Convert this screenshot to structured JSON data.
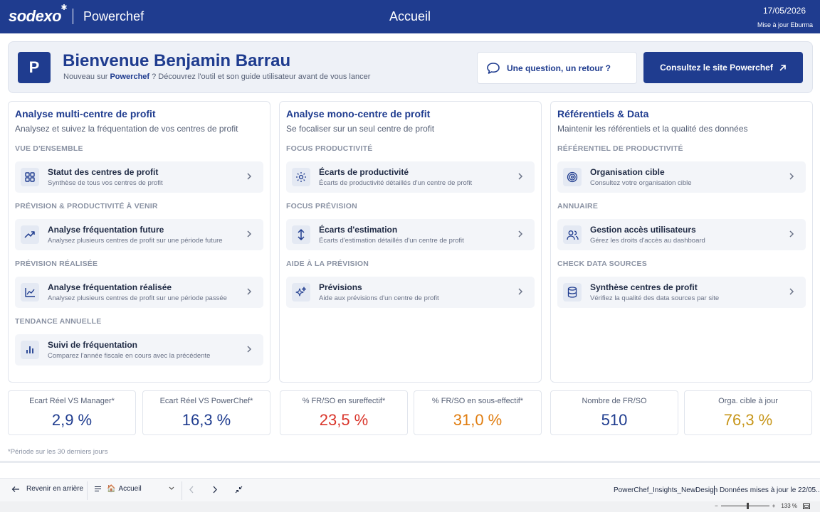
{
  "header": {
    "brand": "sodexo",
    "app_name": "Powerchef",
    "page_title": "Accueil",
    "date": "17/05/2026",
    "update_label": "Mise à jour Eburma"
  },
  "welcome": {
    "avatar_letter": "P",
    "title": "Bienvenue Benjamin Barrau",
    "subtitle_prefix": "Nouveau sur ",
    "subtitle_brand": "Powerchef",
    "subtitle_suffix": " ? Découvrez l'outil et son guide utilisateur avant de vous lancer",
    "question_button": "Une question, un retour ?",
    "site_button": "Consultez le site Powerchef"
  },
  "panels": [
    {
      "title": "Analyse multi-centre de profit",
      "subtitle": "Analysez et suivez la fréquentation de vos centres de profit",
      "sections": [
        {
          "label": "VUE D'ENSEMBLE",
          "items": [
            {
              "title": "Statut des centres de profit",
              "desc": "Synthèse de tous vos centres de profit",
              "icon": "grid-icon"
            }
          ]
        },
        {
          "label": "PRÉVISION & PRODUCTIVITÉ À VENIR",
          "items": [
            {
              "title": "Analyse fréquentation future",
              "desc": "Analysez plusieurs centres de profit sur une période future",
              "icon": "trend-up-icon"
            }
          ]
        },
        {
          "label": "PRÉVISION RÉALISÉE",
          "items": [
            {
              "title": "Analyse fréquentation réalisée",
              "desc": "Analysez plusieurs centres de profit sur une période passée",
              "icon": "line-chart-icon"
            }
          ]
        },
        {
          "label": "TENDANCE ANNUELLE",
          "items": [
            {
              "title": "Suivi de fréquentation",
              "desc": "Comparez l'année fiscale en cours avec la précédente",
              "icon": "bar-chart-icon"
            }
          ]
        }
      ]
    },
    {
      "title": "Analyse mono-centre de profit",
      "subtitle": "Se focaliser sur un seul centre de profit",
      "sections": [
        {
          "label": "FOCUS PRODUCTIVITÉ",
          "items": [
            {
              "title": "Écarts de productivité",
              "desc": "Écarts de productivité détaillés d'un centre de profit",
              "icon": "sun-icon"
            }
          ]
        },
        {
          "label": "FOCUS PRÉVISION",
          "items": [
            {
              "title": "Écarts d'estimation",
              "desc": "Écarts d'estimation détaillés d'un centre de profit",
              "icon": "vertical-arrows-icon"
            }
          ]
        },
        {
          "label": "AIDE À LA PRÉVISION",
          "items": [
            {
              "title": "Prévisions",
              "desc": "Aide aux prévisions d'un centre de profit",
              "icon": "sparkles-icon"
            }
          ]
        }
      ]
    },
    {
      "title": "Référentiels & Data",
      "subtitle": "Maintenir les référentiels et la qualité des données",
      "sections": [
        {
          "label": "RÉFÉRENTIEL DE PRODUCTIVITÉ",
          "items": [
            {
              "title": "Organisation cible",
              "desc": "Consultez votre organisation cible",
              "icon": "target-icon"
            }
          ]
        },
        {
          "label": "ANNUAIRE",
          "items": [
            {
              "title": "Gestion accès utilisateurs",
              "desc": "Gérez les droits d'accès au dashboard",
              "icon": "users-icon"
            }
          ]
        },
        {
          "label": "CHECK DATA SOURCES",
          "items": [
            {
              "title": "Synthèse centres de profit",
              "desc": "Vérifiez la qualité des data sources par site",
              "icon": "database-icon"
            }
          ]
        }
      ]
    }
  ],
  "kpis": [
    {
      "label": "Ecart Réel VS Manager*",
      "value": "2,9 %",
      "color": "#1f3c8f"
    },
    {
      "label": "Ecart Réel VS PowerChef*",
      "value": "16,3 %",
      "color": "#1f3c8f"
    },
    {
      "label": "% FR/SO en sureffectif*",
      "value": "23,5 %",
      "color": "#d9352b"
    },
    {
      "label": "% FR/SO en sous-effectif*",
      "value": "31,0 %",
      "color": "#e07d10"
    },
    {
      "label": "Nombre de FR/SO",
      "value": "510",
      "color": "#1f3c8f"
    },
    {
      "label": "Orga. cible à jour",
      "value": "76,3 %",
      "color": "#c7961a"
    }
  ],
  "footnote": "*Période sur les 30 derniers jours",
  "navbar": {
    "back_label": "Revenir en arrière",
    "page_label": "Accueil",
    "file_name": "PowerChef_Insights_NewDesign",
    "refresh_text": "Données mises à jour le 22/05..."
  },
  "statusbar": {
    "zoom": "133 %"
  }
}
